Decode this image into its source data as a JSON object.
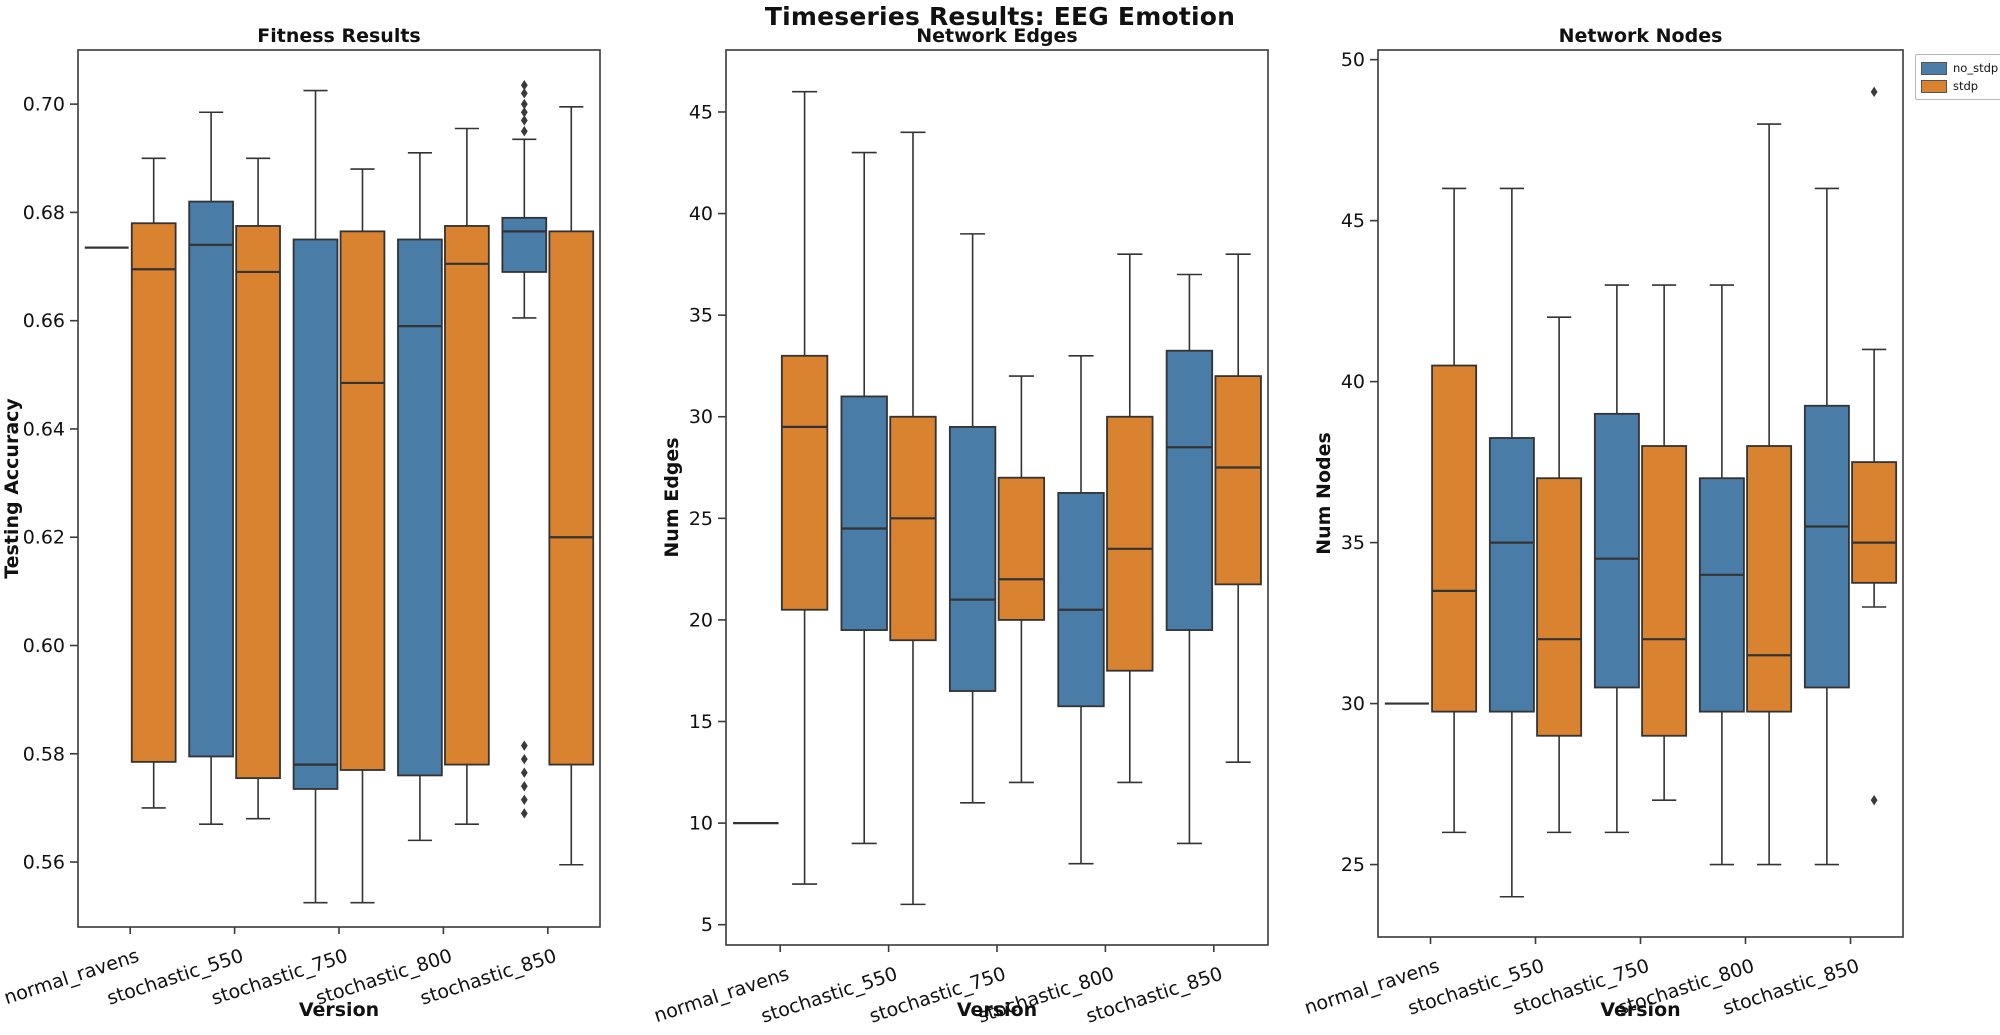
{
  "figure": {
    "title": "Timeseries Results: EEG Emotion"
  },
  "legend": {
    "position": "top-right",
    "items": [
      {
        "label": "no_stdp",
        "color": "#497ca7"
      },
      {
        "label": "stdp",
        "color": "#d9822f"
      }
    ]
  },
  "xlabel": "Version",
  "categories": [
    "normal_ravens",
    "stochastic_550",
    "stochastic_750",
    "stochastic_800",
    "stochastic_850"
  ],
  "edge_color": "#333333",
  "chart_data": [
    {
      "type": "box",
      "title": "Fitness Results",
      "ylabel": "Testing Accuracy",
      "ylim": [
        0.548,
        0.71
      ],
      "yticks": [
        0.56,
        0.58,
        0.6,
        0.62,
        0.64,
        0.66,
        0.68,
        0.7
      ],
      "ydecimals": 2,
      "grid": false,
      "series": [
        {
          "name": "no_stdp",
          "color": "#497ca7",
          "boxes": [
            {
              "flat": 0.6735
            },
            {
              "lo": 0.567,
              "q1": 0.5795,
              "med": 0.674,
              "q3": 0.682,
              "hi": 0.6985
            },
            {
              "lo": 0.5525,
              "q1": 0.5735,
              "med": 0.578,
              "q3": 0.675,
              "hi": 0.7025
            },
            {
              "lo": 0.564,
              "q1": 0.576,
              "med": 0.659,
              "q3": 0.675,
              "hi": 0.691
            },
            {
              "lo": 0.6605,
              "q1": 0.669,
              "med": 0.6765,
              "q3": 0.679,
              "hi": 0.6935,
              "outliers": [
                0.7035,
                0.702,
                0.7,
                0.6985,
                0.697,
                0.695,
                0.5815,
                0.579,
                0.5765,
                0.574,
                0.5715,
                0.569
              ]
            }
          ]
        },
        {
          "name": "stdp",
          "color": "#d9822f",
          "boxes": [
            {
              "lo": 0.57,
              "q1": 0.5785,
              "med": 0.6695,
              "q3": 0.678,
              "hi": 0.69
            },
            {
              "lo": 0.568,
              "q1": 0.5755,
              "med": 0.669,
              "q3": 0.6775,
              "hi": 0.69
            },
            {
              "lo": 0.5525,
              "q1": 0.577,
              "med": 0.6485,
              "q3": 0.6765,
              "hi": 0.688
            },
            {
              "lo": 0.567,
              "q1": 0.578,
              "med": 0.6705,
              "q3": 0.6775,
              "hi": 0.6955
            },
            {
              "lo": 0.5595,
              "q1": 0.578,
              "med": 0.62,
              "q3": 0.6765,
              "hi": 0.6995
            }
          ]
        }
      ]
    },
    {
      "type": "box",
      "title": "Network Edges",
      "ylabel": "Num Edges",
      "ylim": [
        4.0,
        48.05
      ],
      "yticks": [
        5,
        10,
        15,
        20,
        25,
        30,
        35,
        40,
        45
      ],
      "ydecimals": 0,
      "grid": false,
      "series": [
        {
          "name": "no_stdp",
          "color": "#497ca7",
          "boxes": [
            {
              "flat": 10
            },
            {
              "lo": 9,
              "q1": 19.5,
              "med": 24.5,
              "q3": 31,
              "hi": 43
            },
            {
              "lo": 11,
              "q1": 16.5,
              "med": 21,
              "q3": 29.5,
              "hi": 39
            },
            {
              "lo": 8,
              "q1": 15.75,
              "med": 20.5,
              "q3": 26.25,
              "hi": 33
            },
            {
              "lo": 9,
              "q1": 19.5,
              "med": 28.5,
              "q3": 33.25,
              "hi": 37
            }
          ]
        },
        {
          "name": "stdp",
          "color": "#d9822f",
          "boxes": [
            {
              "lo": 7,
              "q1": 20.5,
              "med": 29.5,
              "q3": 33,
              "hi": 46
            },
            {
              "lo": 6,
              "q1": 19,
              "med": 25,
              "q3": 30,
              "hi": 44
            },
            {
              "lo": 12,
              "q1": 20,
              "med": 22,
              "q3": 27,
              "hi": 32
            },
            {
              "lo": 12,
              "q1": 17.5,
              "med": 23.5,
              "q3": 30,
              "hi": 38
            },
            {
              "lo": 13,
              "q1": 21.75,
              "med": 27.5,
              "q3": 32,
              "hi": 38
            }
          ]
        }
      ]
    },
    {
      "type": "box",
      "title": "Network Nodes",
      "ylabel": "Num Nodes",
      "ylim": [
        22.75,
        50.3
      ],
      "yticks": [
        25,
        30,
        35,
        40,
        45,
        50
      ],
      "ydecimals": 0,
      "grid": false,
      "series": [
        {
          "name": "no_stdp",
          "color": "#497ca7",
          "boxes": [
            {
              "flat": 30
            },
            {
              "lo": 24,
              "q1": 29.75,
              "med": 35,
              "q3": 38.25,
              "hi": 46
            },
            {
              "lo": 26,
              "q1": 30.5,
              "med": 34.5,
              "q3": 39,
              "hi": 43
            },
            {
              "lo": 25,
              "q1": 29.75,
              "med": 34,
              "q3": 37,
              "hi": 43
            },
            {
              "lo": 25,
              "q1": 30.5,
              "med": 35.5,
              "q3": 39.25,
              "hi": 46
            }
          ]
        },
        {
          "name": "stdp",
          "color": "#d9822f",
          "boxes": [
            {
              "lo": 26,
              "q1": 29.75,
              "med": 33.5,
              "q3": 40.5,
              "hi": 46
            },
            {
              "lo": 26,
              "q1": 29,
              "med": 32,
              "q3": 37,
              "hi": 42
            },
            {
              "lo": 27,
              "q1": 29,
              "med": 32,
              "q3": 38,
              "hi": 43
            },
            {
              "lo": 25,
              "q1": 29.75,
              "med": 31.5,
              "q3": 38,
              "hi": 48
            },
            {
              "lo": 33,
              "q1": 33.75,
              "med": 35,
              "q3": 37.5,
              "hi": 41,
              "outliers": [
                49,
                27
              ]
            }
          ]
        }
      ]
    }
  ]
}
